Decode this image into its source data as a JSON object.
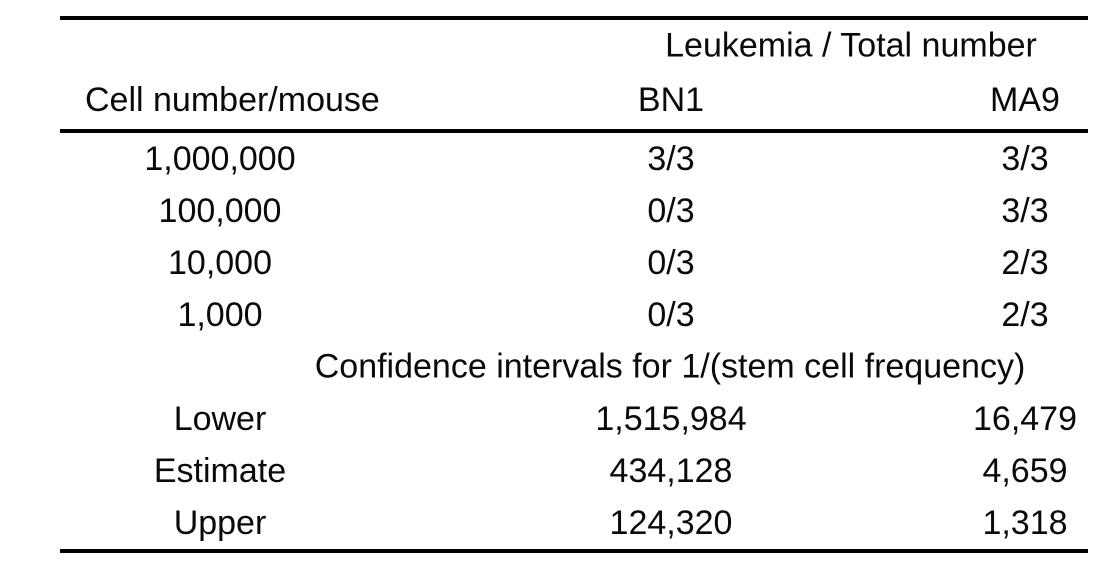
{
  "colors": {
    "background": "#ffffff",
    "text": "#0a0a0a",
    "rule": "#000000"
  },
  "table": {
    "span_header": "Leukemia / Total number",
    "columns": {
      "col1": "Cell number/mouse",
      "col2": "BN1",
      "col3": "MA9"
    },
    "dose_rows": [
      {
        "cells": [
          "1,000,000",
          "3/3",
          "3/3"
        ]
      },
      {
        "cells": [
          "100,000",
          "0/3",
          "3/3"
        ]
      },
      {
        "cells": [
          "10,000",
          "0/3",
          "2/3"
        ]
      },
      {
        "cells": [
          "1,000",
          "0/3",
          "2/3"
        ]
      }
    ],
    "ci_header": "Confidence intervals for 1/(stem cell frequency)",
    "ci_rows": [
      {
        "cells": [
          "Lower",
          "1,515,984",
          "16,479"
        ]
      },
      {
        "cells": [
          "Estimate",
          "434,128",
          "4,659"
        ]
      },
      {
        "cells": [
          "Upper",
          "124,320",
          "1,318"
        ]
      }
    ]
  },
  "chart_data": {
    "type": "table",
    "title": "Leukemia / Total number",
    "columns": [
      "Cell number/mouse",
      "BN1",
      "MA9"
    ],
    "rows": [
      [
        "1,000,000",
        "3/3",
        "3/3"
      ],
      [
        "100,000",
        "0/3",
        "3/3"
      ],
      [
        "10,000",
        "0/3",
        "2/3"
      ],
      [
        "1,000",
        "0/3",
        "2/3"
      ]
    ],
    "section_header": "Confidence intervals for 1/(stem cell frequency)",
    "confidence_intervals": {
      "columns": [
        "",
        "BN1",
        "MA9"
      ],
      "rows": [
        [
          "Lower",
          1515984,
          16479
        ],
        [
          "Estimate",
          434128,
          4659
        ],
        [
          "Upper",
          124320,
          1318
        ]
      ]
    }
  }
}
